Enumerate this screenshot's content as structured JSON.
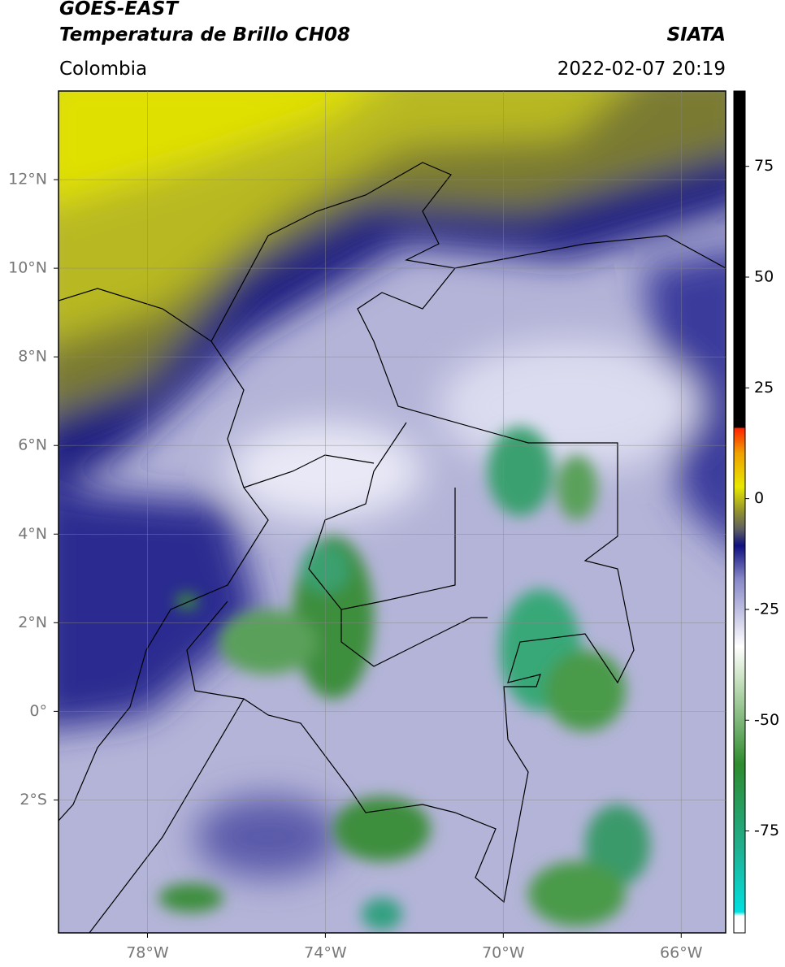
{
  "header": {
    "title_line1": "GOES-EAST",
    "title_line2": "Temperatura de Brillo CH08",
    "region": "Colombia",
    "source": "SIATA",
    "datetime": "2022-02-07 20:19"
  },
  "map": {
    "lonlim": [
      -80,
      -65
    ],
    "latlim": [
      -5,
      14
    ],
    "lon_ticks": [
      {
        "value": -78,
        "label": "78°W"
      },
      {
        "value": -74,
        "label": "74°W"
      },
      {
        "value": -70,
        "label": "70°W"
      },
      {
        "value": -66,
        "label": "66°W"
      }
    ],
    "lat_ticks": [
      {
        "value": 12,
        "label": "12°N"
      },
      {
        "value": 10,
        "label": "10°N"
      },
      {
        "value": 8,
        "label": "8°N"
      },
      {
        "value": 6,
        "label": "6°N"
      },
      {
        "value": 4,
        "label": "4°N"
      },
      {
        "value": 2,
        "label": "2°N"
      },
      {
        "value": 0,
        "label": "0°"
      },
      {
        "value": -2,
        "label": "2°S"
      }
    ]
  },
  "colorbar": {
    "lim": [
      -98,
      92
    ],
    "ticks": [
      75,
      50,
      25,
      0,
      -25,
      -50,
      -75
    ]
  }
}
